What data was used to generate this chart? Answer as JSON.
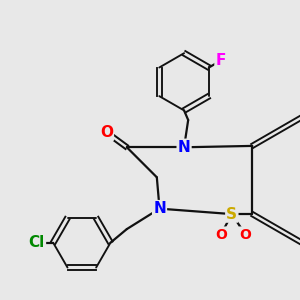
{
  "background_color": "#e8e8e8",
  "bond_color": "#111111",
  "lw": 1.6,
  "fs": 10,
  "xlim": [
    -1.1,
    1.1
  ],
  "ylim": [
    -0.55,
    1.35
  ],
  "F_color": "#ff00ff",
  "Cl_color": "#008800",
  "N_color": "#0000ff",
  "O_color": "#ff0000",
  "S_color": "#ccaa00"
}
